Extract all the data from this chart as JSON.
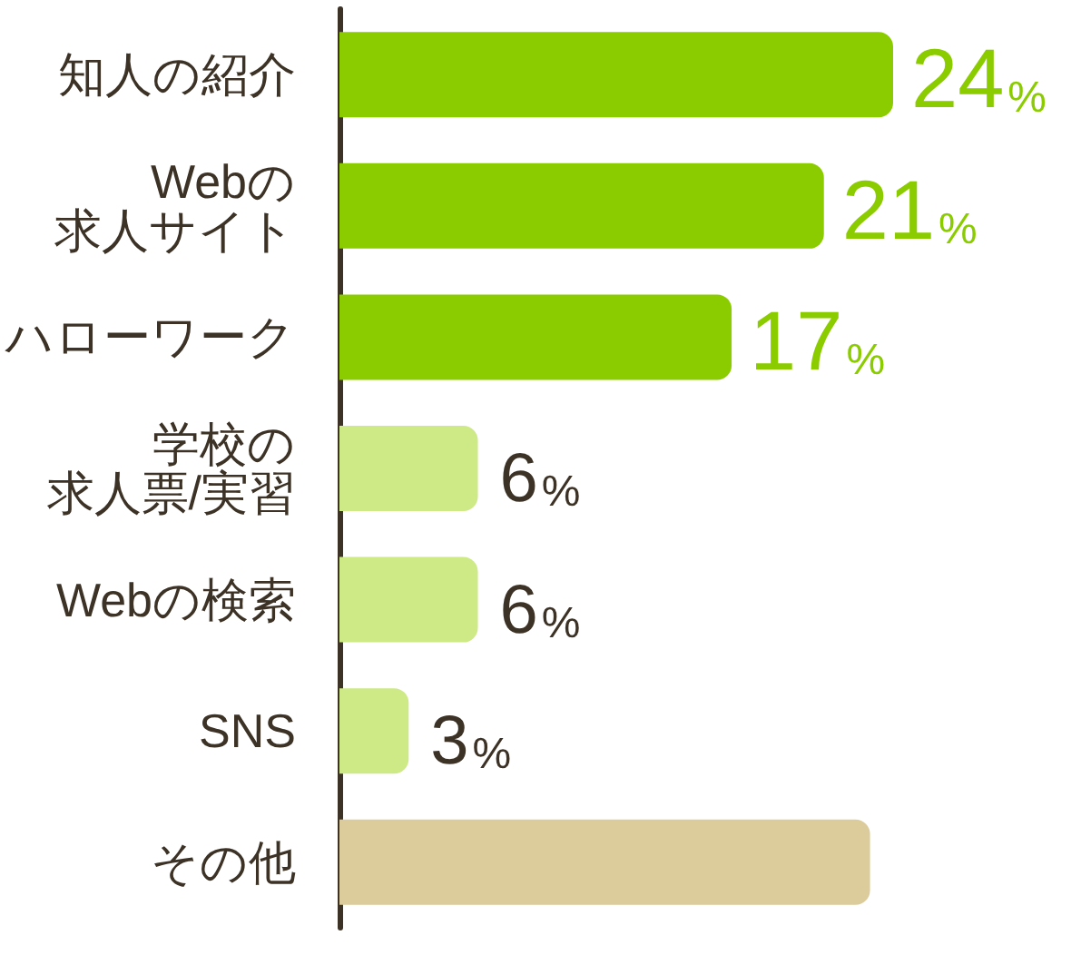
{
  "chart_data": {
    "type": "bar",
    "orientation": "horizontal",
    "categories": [
      "知人の紹介",
      "Webの求人サイト",
      "ハローワーク",
      "学校の求人票/実習",
      "Webの検索",
      "SNS",
      "その他"
    ],
    "values": [
      24,
      21,
      17,
      6,
      6,
      3,
      23
    ],
    "colors": [
      "#8bcc00",
      "#8bcc00",
      "#8bcc00",
      "#cdea87",
      "#cdea87",
      "#cdea87",
      "#dccb9b"
    ],
    "value_labels": [
      "24%",
      "21%",
      "17%",
      "6%",
      "6%",
      "3%",
      null
    ]
  }
}
